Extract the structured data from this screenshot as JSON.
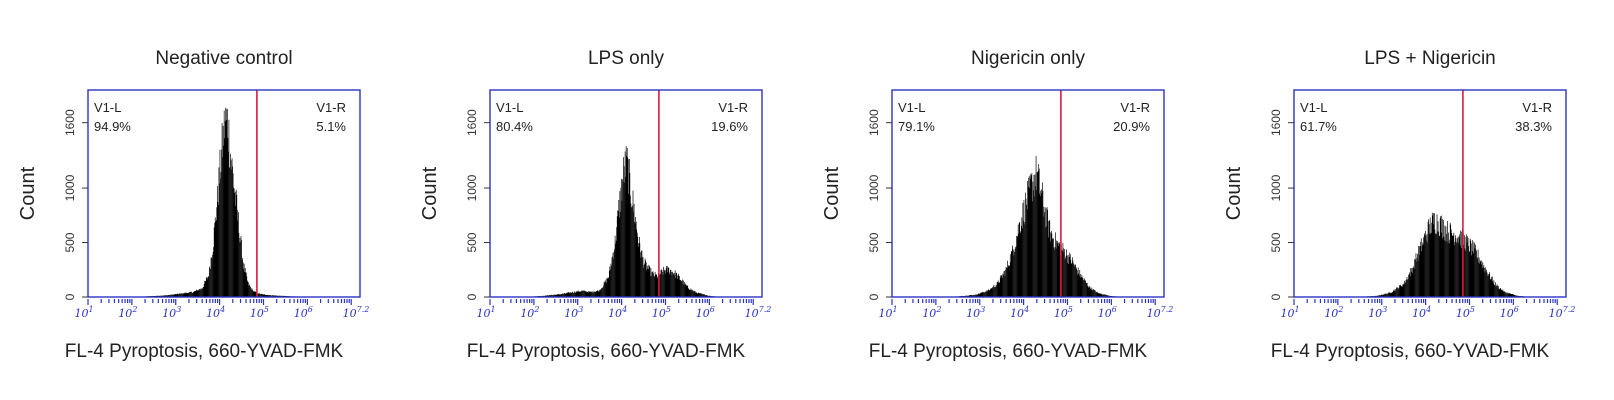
{
  "colors": {
    "frame": "#2a33c8",
    "gate": "#d81e3a",
    "bars": "#000000",
    "text": "#222222"
  },
  "chart_data": [
    {
      "type": "bar",
      "title": "Negative control",
      "xlabel": "FL-4 Pyroptosis, 660-YVAD-FMK",
      "ylabel": "Count",
      "xscale": "log10",
      "xlim": [
        1,
        7.2
      ],
      "ylim": [
        0,
        1900
      ],
      "yticks": [
        0,
        500,
        1000,
        1600
      ],
      "xticks": [
        {
          "base": "10",
          "exp": "1"
        },
        {
          "base": "10",
          "exp": "2"
        },
        {
          "base": "10",
          "exp": "3"
        },
        {
          "base": "10",
          "exp": "4"
        },
        {
          "base": "10",
          "exp": "5"
        },
        {
          "base": "10",
          "exp": "6"
        },
        {
          "base": "10",
          "exp": "7.2"
        }
      ],
      "gate": {
        "x": 4.85,
        "left": {
          "name": "V1-L",
          "value": "94.9%"
        },
        "right": {
          "name": "V1-R",
          "value": "5.1%"
        }
      },
      "histogram": [
        [
          1.9,
          0
        ],
        [
          2.3,
          5
        ],
        [
          2.8,
          15
        ],
        [
          3.1,
          30
        ],
        [
          3.4,
          45
        ],
        [
          3.6,
          80
        ],
        [
          3.75,
          200
        ],
        [
          3.85,
          480
        ],
        [
          3.95,
          900
        ],
        [
          4.05,
          1350
        ],
        [
          4.12,
          1600
        ],
        [
          4.18,
          1620
        ],
        [
          4.25,
          1300
        ],
        [
          4.35,
          950
        ],
        [
          4.45,
          600
        ],
        [
          4.55,
          280
        ],
        [
          4.65,
          120
        ],
        [
          4.75,
          60
        ],
        [
          4.85,
          35
        ],
        [
          5.0,
          22
        ],
        [
          5.3,
          12
        ],
        [
          5.7,
          5
        ],
        [
          6.2,
          0
        ]
      ]
    },
    {
      "type": "bar",
      "title": "LPS only",
      "xlabel": "FL-4 Pyroptosis, 660-YVAD-FMK",
      "ylabel": "Count",
      "xscale": "log10",
      "xlim": [
        1,
        7.2
      ],
      "ylim": [
        0,
        1900
      ],
      "yticks": [
        0,
        500,
        1000,
        1600
      ],
      "xticks": [
        {
          "base": "10",
          "exp": "1"
        },
        {
          "base": "10",
          "exp": "2"
        },
        {
          "base": "10",
          "exp": "3"
        },
        {
          "base": "10",
          "exp": "4"
        },
        {
          "base": "10",
          "exp": "5"
        },
        {
          "base": "10",
          "exp": "6"
        },
        {
          "base": "10",
          "exp": "7.2"
        }
      ],
      "gate": {
        "x": 4.85,
        "left": {
          "name": "V1-L",
          "value": "80.4%"
        },
        "right": {
          "name": "V1-R",
          "value": "19.6%"
        }
      },
      "histogram": [
        [
          1.8,
          0
        ],
        [
          2.2,
          10
        ],
        [
          2.6,
          25
        ],
        [
          2.9,
          45
        ],
        [
          3.1,
          55
        ],
        [
          3.3,
          45
        ],
        [
          3.5,
          60
        ],
        [
          3.7,
          180
        ],
        [
          3.85,
          500
        ],
        [
          3.95,
          850
        ],
        [
          4.05,
          1150
        ],
        [
          4.12,
          1230
        ],
        [
          4.2,
          1000
        ],
        [
          4.3,
          750
        ],
        [
          4.4,
          480
        ],
        [
          4.5,
          320
        ],
        [
          4.6,
          260
        ],
        [
          4.7,
          210
        ],
        [
          4.8,
          190
        ],
        [
          4.9,
          220
        ],
        [
          5.0,
          250
        ],
        [
          5.1,
          245
        ],
        [
          5.2,
          220
        ],
        [
          5.35,
          160
        ],
        [
          5.5,
          90
        ],
        [
          5.7,
          40
        ],
        [
          6.0,
          10
        ],
        [
          6.3,
          0
        ]
      ]
    },
    {
      "type": "bar",
      "title": "Nigericin only",
      "xlabel": "FL-4 Pyroptosis, 660-YVAD-FMK",
      "ylabel": "Count",
      "xscale": "log10",
      "xlim": [
        1,
        7.2
      ],
      "ylim": [
        0,
        1900
      ],
      "yticks": [
        0,
        500,
        1000,
        1600
      ],
      "xticks": [
        {
          "base": "10",
          "exp": "1"
        },
        {
          "base": "10",
          "exp": "2"
        },
        {
          "base": "10",
          "exp": "3"
        },
        {
          "base": "10",
          "exp": "4"
        },
        {
          "base": "10",
          "exp": "5"
        },
        {
          "base": "10",
          "exp": "6"
        },
        {
          "base": "10",
          "exp": "7.2"
        }
      ],
      "gate": {
        "x": 4.85,
        "left": {
          "name": "V1-L",
          "value": "79.1%"
        },
        "right": {
          "name": "V1-R",
          "value": "20.9%"
        }
      },
      "histogram": [
        [
          2.1,
          0
        ],
        [
          2.5,
          5
        ],
        [
          2.9,
          20
        ],
        [
          3.2,
          60
        ],
        [
          3.4,
          120
        ],
        [
          3.6,
          250
        ],
        [
          3.75,
          420
        ],
        [
          3.9,
          650
        ],
        [
          4.05,
          850
        ],
        [
          4.2,
          1050
        ],
        [
          4.3,
          1130
        ],
        [
          4.4,
          950
        ],
        [
          4.5,
          760
        ],
        [
          4.6,
          600
        ],
        [
          4.7,
          520
        ],
        [
          4.8,
          470
        ],
        [
          4.9,
          430
        ],
        [
          5.0,
          380
        ],
        [
          5.1,
          330
        ],
        [
          5.2,
          260
        ],
        [
          5.35,
          170
        ],
        [
          5.5,
          90
        ],
        [
          5.7,
          35
        ],
        [
          6.0,
          8
        ],
        [
          6.3,
          0
        ]
      ]
    },
    {
      "type": "bar",
      "title": "LPS + Nigericin",
      "xlabel": "FL-4 Pyroptosis, 660-YVAD-FMK",
      "ylabel": "Count",
      "xscale": "log10",
      "xlim": [
        1,
        7.2
      ],
      "ylim": [
        0,
        1900
      ],
      "yticks": [
        0,
        500,
        1000,
        1600
      ],
      "xticks": [
        {
          "base": "10",
          "exp": "1"
        },
        {
          "base": "10",
          "exp": "2"
        },
        {
          "base": "10",
          "exp": "3"
        },
        {
          "base": "10",
          "exp": "4"
        },
        {
          "base": "10",
          "exp": "5"
        },
        {
          "base": "10",
          "exp": "6"
        },
        {
          "base": "10",
          "exp": "7.2"
        }
      ],
      "gate": {
        "x": 4.85,
        "left": {
          "name": "V1-L",
          "value": "61.7%"
        },
        "right": {
          "name": "V1-R",
          "value": "38.3%"
        }
      },
      "histogram": [
        [
          2.4,
          0
        ],
        [
          2.9,
          10
        ],
        [
          3.2,
          40
        ],
        [
          3.5,
          120
        ],
        [
          3.7,
          260
        ],
        [
          3.85,
          420
        ],
        [
          4.0,
          560
        ],
        [
          4.1,
          650
        ],
        [
          4.2,
          700
        ],
        [
          4.3,
          680
        ],
        [
          4.4,
          640
        ],
        [
          4.5,
          600
        ],
        [
          4.6,
          580
        ],
        [
          4.7,
          570
        ],
        [
          4.8,
          540
        ],
        [
          4.9,
          510
        ],
        [
          5.0,
          470
        ],
        [
          5.1,
          430
        ],
        [
          5.2,
          370
        ],
        [
          5.3,
          300
        ],
        [
          5.45,
          200
        ],
        [
          5.6,
          110
        ],
        [
          5.8,
          45
        ],
        [
          6.1,
          10
        ],
        [
          6.4,
          0
        ]
      ]
    }
  ]
}
